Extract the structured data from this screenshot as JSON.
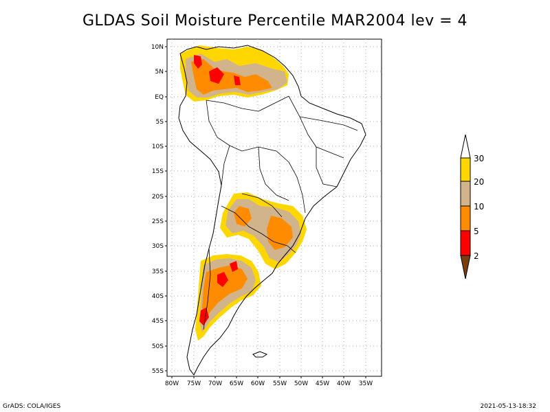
{
  "title": "GLDAS Soil Moisture Percentile MAR2004 lev = 4",
  "footer": {
    "left": "GrADS: COLA/IGES",
    "right": "2021-05-13-18:32"
  },
  "axes": {
    "lat_ticks": [
      "10N",
      "5N",
      "EQ",
      "5S",
      "10S",
      "15S",
      "20S",
      "25S",
      "30S",
      "35S",
      "40S",
      "45S",
      "50S",
      "55S"
    ],
    "lon_ticks": [
      "80W",
      "75W",
      "70W",
      "65W",
      "60W",
      "55W",
      "50W",
      "45W",
      "40W",
      "35W"
    ]
  },
  "legend": {
    "labels": [
      "2",
      "5",
      "10",
      "20",
      "30"
    ],
    "colors": {
      "below_2": "#7a3f10",
      "2_5": "#ff0000",
      "5_10": "#ff8c00",
      "10_20": "#d2b48c",
      "20_30": "#ffd700",
      "above_30": "#ffffff"
    }
  },
  "colors": {
    "coast": "#000000",
    "grid": "#aaaaaa"
  }
}
